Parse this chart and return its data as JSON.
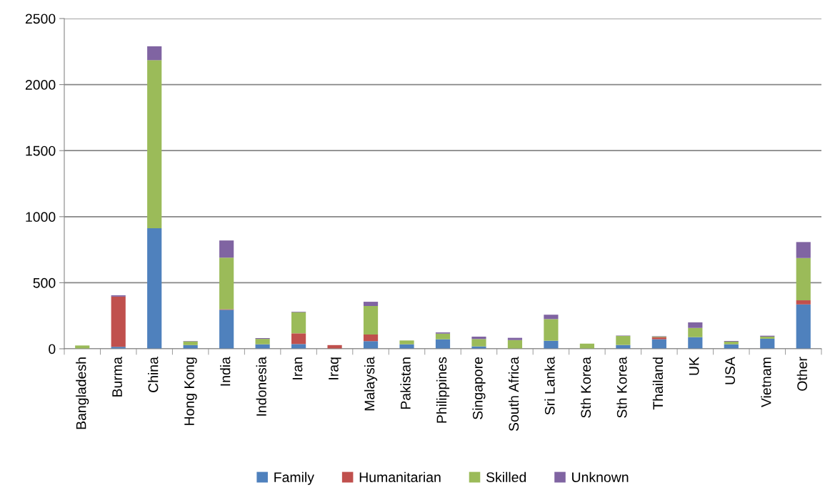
{
  "chart_data": {
    "type": "bar",
    "stacked": true,
    "categories": [
      "Bangladesh",
      "Burma",
      "China",
      "Hong Kong",
      "India",
      "Indonesia",
      "Iran",
      "Iraq",
      "Malaysia",
      "Pakistan",
      "Philippines",
      "Singapore",
      "South Africa",
      "Sri Lanka",
      "Sth Korea",
      "Sth Korea",
      "Thailand",
      "UK",
      "USA",
      "Vietnam",
      "Other"
    ],
    "series": [
      {
        "name": "Family",
        "color": "#4f81bd",
        "values": [
          null,
          15,
          912,
          28,
          295,
          34,
          36,
          null,
          58,
          34,
          72,
          18,
          null,
          61,
          null,
          29,
          72,
          88,
          34,
          76,
          336
        ]
      },
      {
        "name": "Humanitarian",
        "color": "#c0504d",
        "values": [
          0,
          380,
          0,
          0,
          5,
          0,
          81,
          28,
          50,
          0,
          0,
          0,
          0,
          0,
          0,
          0,
          16,
          0,
          0,
          0,
          31
        ]
      },
      {
        "name": "Skilled",
        "color": "#9bbb59",
        "values": [
          25,
          0,
          1273,
          28,
          390,
          41,
          160,
          0,
          216,
          29,
          43,
          56,
          66,
          164,
          39,
          68,
          5,
          70,
          20,
          16,
          320
        ]
      },
      {
        "name": "Unknown",
        "color": "#8064a2",
        "values": [
          0,
          10,
          105,
          3,
          130,
          6,
          4,
          0,
          32,
          null,
          9,
          18,
          17,
          33,
          0,
          3,
          3,
          42,
          5,
          7,
          121
        ]
      }
    ],
    "ylim": [
      0,
      2500
    ],
    "yticks": [
      0,
      500,
      1000,
      1500,
      2000,
      2500
    ],
    "grid": "y",
    "legend": "bottom"
  }
}
